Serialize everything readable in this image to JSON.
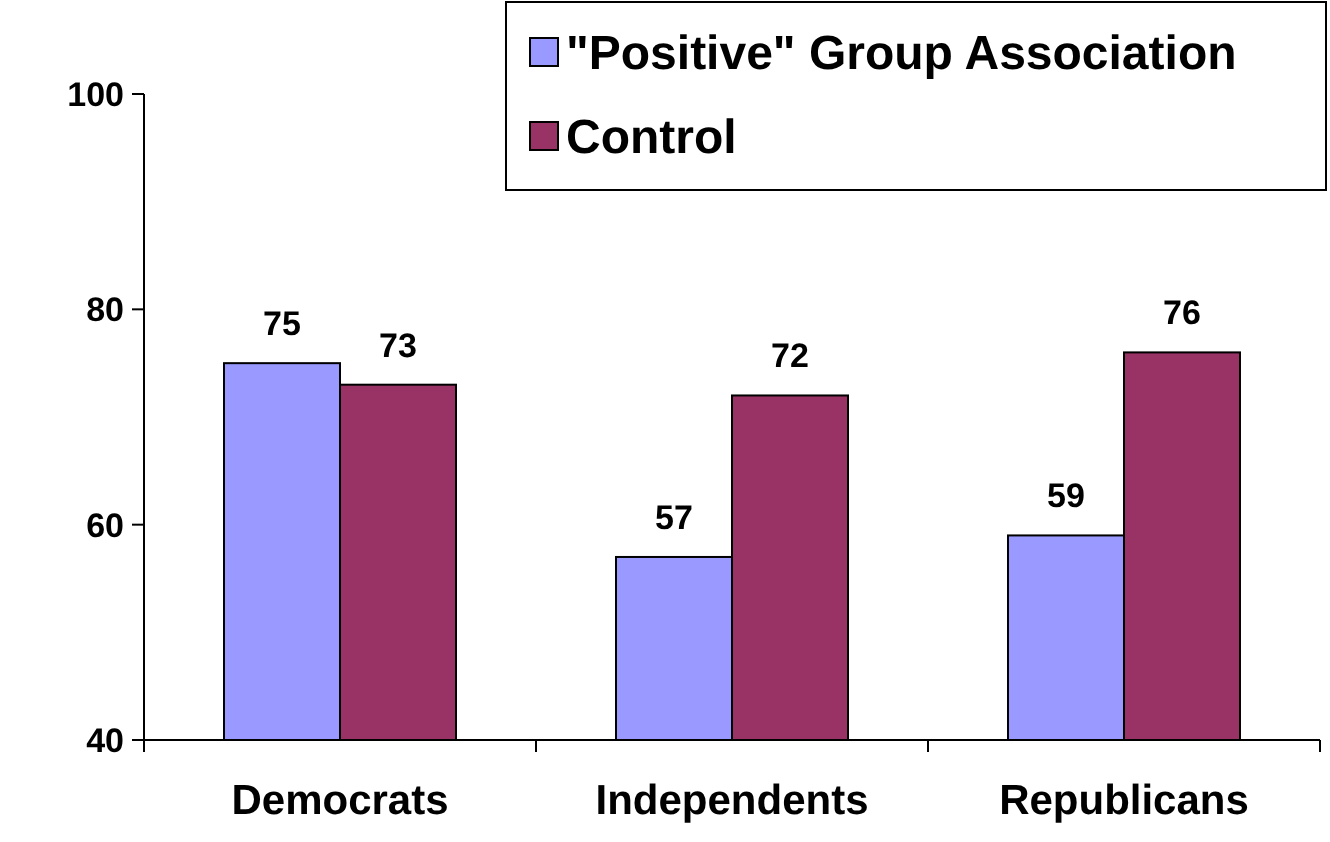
{
  "chart_data": {
    "type": "bar",
    "categories": [
      "Democrats",
      "Independents",
      "Republicans"
    ],
    "series": [
      {
        "name": "\"Positive\" Group Association",
        "color": "#9999ff",
        "values": [
          75,
          57,
          59
        ]
      },
      {
        "name": "Control",
        "color": "#993366",
        "values": [
          73,
          72,
          76
        ]
      }
    ],
    "ylim": [
      40,
      100
    ],
    "yticks": [
      40,
      60,
      80,
      100
    ],
    "data_labels": true,
    "legend": "top right",
    "grid": false
  }
}
